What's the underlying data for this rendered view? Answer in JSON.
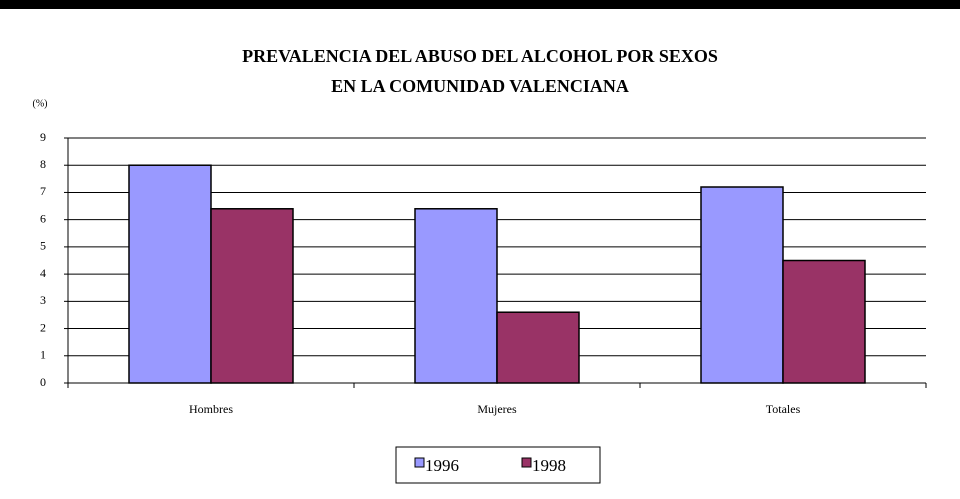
{
  "chart_data": {
    "type": "bar",
    "title": [
      "PREVALENCIA DEL ABUSO DEL ALCOHOL POR SEXOS",
      "EN LA COMUNIDAD VALENCIANA"
    ],
    "y_label": "(%)",
    "categories": [
      "Hombres",
      "Mujeres",
      "Totales"
    ],
    "series": [
      {
        "name": "1996",
        "color": "#9999ff",
        "values": [
          8,
          6.4,
          7.2
        ]
      },
      {
        "name": "1998",
        "color": "#993366",
        "values": [
          6.4,
          2.6,
          4.5
        ]
      }
    ],
    "ylim": [
      0,
      9
    ],
    "yticks": [
      0,
      1,
      2,
      3,
      4,
      5,
      6,
      7,
      8,
      9
    ],
    "grid": true,
    "legend": "bottom"
  }
}
